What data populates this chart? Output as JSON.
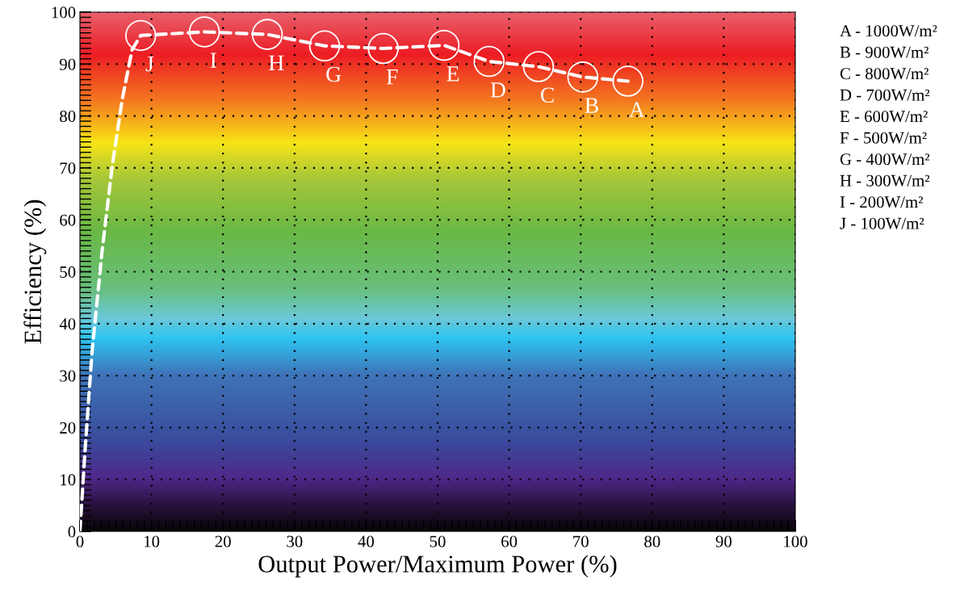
{
  "chart_data": {
    "type": "line",
    "xlabel": "Output Power/Maximum Power (%)",
    "ylabel": "Efficiency (%)",
    "xlim": [
      0,
      100
    ],
    "ylim": [
      0,
      100
    ],
    "xticks": [
      0,
      10,
      20,
      30,
      40,
      50,
      60,
      70,
      80,
      90,
      100
    ],
    "yticks": [
      0,
      10,
      20,
      30,
      40,
      50,
      60,
      70,
      80,
      90,
      100
    ],
    "grid": true,
    "legend": false,
    "series": [
      {
        "color": "#ffffff",
        "line_style": "dashed",
        "marker": "none",
        "x": [
          0,
          0.7,
          1.7,
          3.1,
          4.5,
          5.9,
          7.3,
          8.5,
          17.4,
          26.2,
          34.2,
          42.4,
          50.9,
          57.2,
          64.1,
          70.3,
          76.6
        ],
        "values": [
          0,
          15.3,
          34.7,
          54,
          70.2,
          83.1,
          92.8,
          95.5,
          96.2,
          95.7,
          93.5,
          93.0,
          93.6,
          90.5,
          89.5,
          87.5,
          86.7
        ]
      },
      {
        "type": "scatter",
        "color": "#ffffff",
        "marker": "circle",
        "x": [
          8.5,
          17.4,
          26.2,
          34.2,
          42.4,
          50.9,
          57.2,
          64.1,
          70.3,
          76.6
        ],
        "values": [
          95.5,
          96.2,
          95.7,
          93.5,
          93.0,
          93.6,
          90.5,
          89.5,
          87.5,
          86.7
        ]
      }
    ],
    "annotations": [
      {
        "text": "J",
        "x": 8.5,
        "y": 95.5
      },
      {
        "text": "I",
        "x": 17.4,
        "y": 96.2
      },
      {
        "text": "H",
        "x": 26.2,
        "y": 95.7
      },
      {
        "text": "G",
        "x": 34.2,
        "y": 93.5
      },
      {
        "text": "F",
        "x": 42.4,
        "y": 93.0
      },
      {
        "text": "E",
        "x": 50.9,
        "y": 93.6
      },
      {
        "text": "D",
        "x": 57.2,
        "y": 90.5
      },
      {
        "text": "C",
        "x": 64.1,
        "y": 89.5
      },
      {
        "text": "B",
        "x": 70.3,
        "y": 87.5
      },
      {
        "text": "A",
        "x": 76.6,
        "y": 86.7
      },
      "A - 1000W/m²",
      "B - 900W/m²",
      "C - 800W/m²",
      "D - 700W/m²",
      "E - 600W/m²",
      "F - 500W/m²",
      "G - 400W/m²",
      "H - 300W/m²",
      "I - 200W/m²",
      "J - 100W/m²"
    ]
  }
}
